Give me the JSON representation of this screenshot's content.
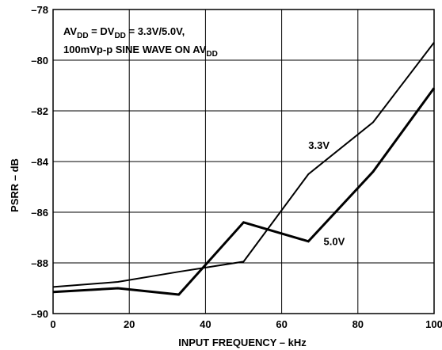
{
  "chart_data": {
    "type": "line",
    "xlabel": "INPUT FREQUENCY – kHz",
    "ylabel": "PSRR – dB",
    "xlim": [
      0,
      100
    ],
    "ylim": [
      -90,
      -78
    ],
    "x_ticks": [
      "0",
      "20",
      "40",
      "60",
      "80",
      "100"
    ],
    "y_ticks": [
      "–78",
      "–80",
      "–82",
      "–84",
      "–86",
      "–88",
      "–90"
    ],
    "grid": true,
    "annotation": {
      "line1": {
        "p1": "AV",
        "s1": "DD",
        "p2": " = DV",
        "s2": "DD",
        "p3": " = 3.3V/5.0V,"
      },
      "line2": {
        "p1": "100mVp-p SINE WAVE ON AV",
        "s1": "DD"
      }
    },
    "series": [
      {
        "name": "3.3V",
        "stroke_width": 2,
        "x": [
          0,
          17,
          33,
          50,
          67,
          84,
          100
        ],
        "y": [
          -88.95,
          -88.75,
          -88.35,
          -87.95,
          -84.5,
          -82.45,
          -79.3
        ]
      },
      {
        "name": "5.0V",
        "stroke_width": 3,
        "x": [
          0,
          17,
          33,
          50,
          67,
          84,
          100
        ],
        "y": [
          -89.15,
          -89.0,
          -89.25,
          -86.4,
          -87.15,
          -84.4,
          -81.1
        ]
      }
    ]
  }
}
